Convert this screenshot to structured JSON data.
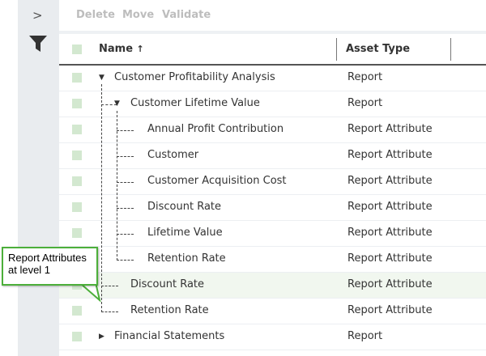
{
  "sidebar": {
    "expand_icon": "chevron-right-icon",
    "filter_icon": "filter-icon"
  },
  "toolbar": {
    "delete": "Delete",
    "move": "Move",
    "validate": "Validate"
  },
  "table": {
    "columns": {
      "name": "Name",
      "sort_indicator": "↑",
      "asset_type": "Asset Type"
    },
    "rows": [
      {
        "name": "Customer Profitability Analysis",
        "type": "Report",
        "level": 0,
        "toggle": "expanded"
      },
      {
        "name": "Customer Lifetime Value",
        "type": "Report",
        "level": 1,
        "toggle": "expanded"
      },
      {
        "name": "Annual Profit Contribution",
        "type": "Report Attribute",
        "level": 2
      },
      {
        "name": "Customer",
        "type": "Report Attribute",
        "level": 2
      },
      {
        "name": "Customer Acquisition Cost",
        "type": "Report Attribute",
        "level": 2
      },
      {
        "name": "Discount Rate",
        "type": "Report Attribute",
        "level": 2
      },
      {
        "name": "Lifetime Value",
        "type": "Report Attribute",
        "level": 2
      },
      {
        "name": "Retention Rate",
        "type": "Report Attribute",
        "level": 2
      },
      {
        "name": "Discount Rate",
        "type": "Report Attribute",
        "level": 1,
        "selected": true
      },
      {
        "name": "Retention Rate",
        "type": "Report Attribute",
        "level": 1
      },
      {
        "name": "Financial Statements",
        "type": "Report",
        "level": 0,
        "toggle": "collapsed"
      }
    ]
  },
  "callout": {
    "text": "Report Attributes at level 1",
    "color": "#4caf3a"
  }
}
